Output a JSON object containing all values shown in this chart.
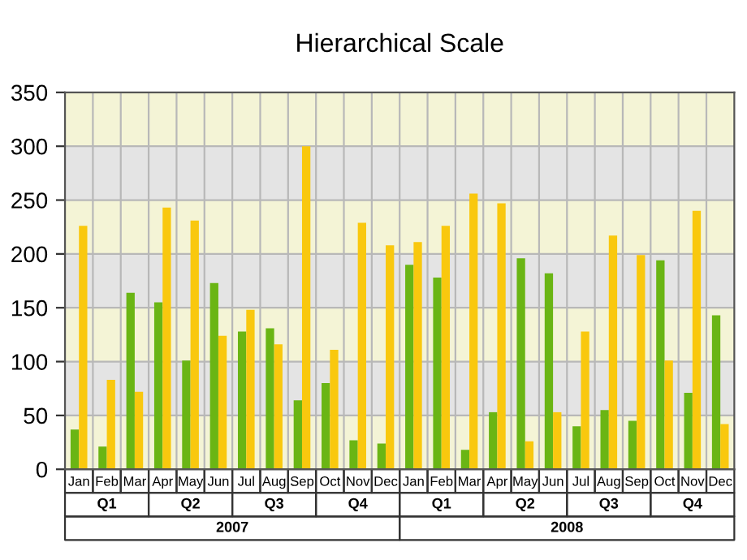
{
  "chart_data": {
    "type": "bar",
    "title": "Hierarchical Scale",
    "categories": [
      "Jan",
      "Feb",
      "Mar",
      "Apr",
      "May",
      "Jun",
      "Jul",
      "Aug",
      "Sep",
      "Oct",
      "Nov",
      "Dec",
      "Jan",
      "Feb",
      "Mar",
      "Apr",
      "May",
      "Jun",
      "Jul",
      "Aug",
      "Sep",
      "Oct",
      "Nov",
      "Dec"
    ],
    "series": [
      {
        "color": "#6ab514",
        "values": [
          37,
          21,
          164,
          155,
          101,
          173,
          128,
          131,
          64,
          80,
          27,
          24,
          190,
          178,
          18,
          53,
          196,
          182,
          40,
          55,
          45,
          194,
          71,
          143
        ]
      },
      {
        "color": "#f9c80e",
        "values": [
          226,
          83,
          72,
          243,
          231,
          124,
          148,
          116,
          300,
          111,
          229,
          208,
          211,
          226,
          256,
          247,
          26,
          53,
          128,
          217,
          199,
          101,
          240,
          42
        ]
      }
    ],
    "annotations": [
      "Q1",
      "Q2",
      "Q3",
      "Q4",
      "Q1",
      "Q2",
      "Q3",
      "Q4",
      "2007",
      "2008"
    ],
    "ylim": [
      0,
      350
    ],
    "yticks": [
      0,
      50,
      100,
      150,
      200,
      250,
      300,
      350
    ],
    "grid": true,
    "legend": false
  }
}
